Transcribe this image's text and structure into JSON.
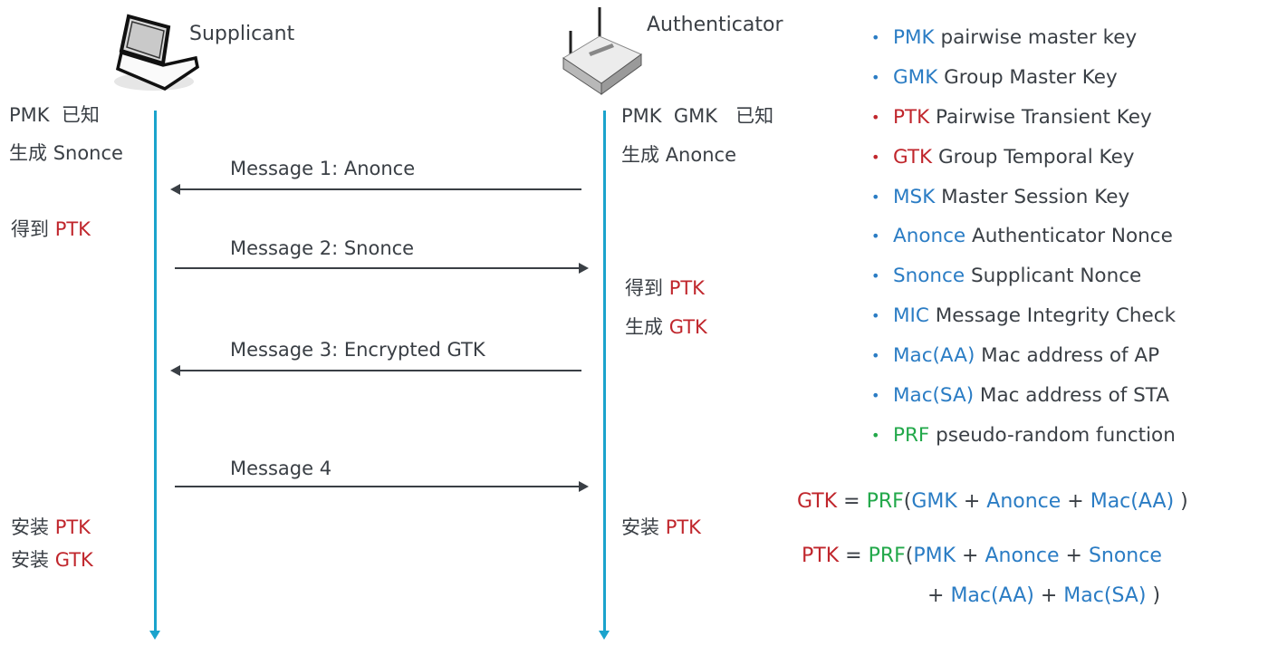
{
  "colors": {
    "text": "#3a3f45",
    "blue": "#2a7cc4",
    "red": "#c0262c",
    "green": "#22a84a",
    "lifeline": "#1aa3cc"
  },
  "supplicant": {
    "title": "Supplicant",
    "icon": "laptop-icon",
    "notes": [
      [
        {
          "t": "PMK  ",
          "c": "text"
        },
        {
          "t": "已知",
          "c": "text"
        }
      ],
      [
        {
          "t": "生成 ",
          "c": "text"
        },
        {
          "t": "Snonce",
          "c": "text"
        }
      ],
      [
        {
          "t": "得到 ",
          "c": "text"
        },
        {
          "t": "PTK",
          "c": "red"
        }
      ],
      [
        {
          "t": "安装 ",
          "c": "text"
        },
        {
          "t": "PTK",
          "c": "red"
        }
      ],
      [
        {
          "t": "安装 ",
          "c": "text"
        },
        {
          "t": "GTK",
          "c": "red"
        }
      ]
    ]
  },
  "authenticator": {
    "title": "Authenticator",
    "icon": "router-icon",
    "notes": [
      [
        {
          "t": "PMK  GMK   ",
          "c": "text"
        },
        {
          "t": "已知",
          "c": "text"
        }
      ],
      [
        {
          "t": "生成 ",
          "c": "text"
        },
        {
          "t": "Anonce",
          "c": "text"
        }
      ],
      [
        {
          "t": "得到 ",
          "c": "text"
        },
        {
          "t": "PTK",
          "c": "red"
        }
      ],
      [
        {
          "t": "生成 ",
          "c": "text"
        },
        {
          "t": "GTK",
          "c": "red"
        }
      ],
      [
        {
          "t": "安装 ",
          "c": "text"
        },
        {
          "t": "PTK",
          "c": "red"
        }
      ]
    ]
  },
  "messages": [
    {
      "label": "Message 1:  Anonce",
      "direction": "left"
    },
    {
      "label": "Message 2:  Snonce",
      "direction": "right"
    },
    {
      "label": "Message 3:  Encrypted GTK",
      "direction": "left"
    },
    {
      "label": "Message 4",
      "direction": "right"
    }
  ],
  "legend": [
    {
      "term": "PMK",
      "desc": " pairwise master key",
      "c": "blue"
    },
    {
      "term": "GMK",
      "desc": " Group Master Key",
      "c": "blue"
    },
    {
      "term": "PTK",
      "desc": " Pairwise Transient Key",
      "c": "red"
    },
    {
      "term": "GTK",
      "desc": " Group Temporal Key",
      "c": "red"
    },
    {
      "term": "MSK",
      "desc": " Master Session Key",
      "c": "blue"
    },
    {
      "term": "Anonce",
      "desc": " Authenticator Nonce",
      "c": "blue"
    },
    {
      "term": "Snonce",
      "desc": " Supplicant Nonce",
      "c": "blue"
    },
    {
      "term": "MIC",
      "desc": " Message Integrity Check",
      "c": "blue"
    },
    {
      "term": "Mac(AA)",
      "desc": " Mac address of AP",
      "c": "blue"
    },
    {
      "term": "Mac(SA)",
      "desc": " Mac address of STA",
      "c": "blue"
    },
    {
      "term": "PRF",
      "desc": " pseudo-random function",
      "c": "green"
    }
  ],
  "bullet": "•",
  "formulas": [
    [
      {
        "t": "GTK",
        "c": "red"
      },
      {
        "t": " = ",
        "c": "text"
      },
      {
        "t": "PRF",
        "c": "green"
      },
      {
        "t": "(",
        "c": "text"
      },
      {
        "t": "GMK",
        "c": "blue"
      },
      {
        "t": " + ",
        "c": "text"
      },
      {
        "t": "Anonce",
        "c": "blue"
      },
      {
        "t": " + ",
        "c": "text"
      },
      {
        "t": "Mac(AA)",
        "c": "blue"
      },
      {
        "t": " )",
        "c": "text"
      }
    ],
    [
      {
        "t": "PTK",
        "c": "red"
      },
      {
        "t": " = ",
        "c": "text"
      },
      {
        "t": "PRF",
        "c": "green"
      },
      {
        "t": "(",
        "c": "text"
      },
      {
        "t": "PMK",
        "c": "blue"
      },
      {
        "t": " + ",
        "c": "text"
      },
      {
        "t": "Anonce",
        "c": "blue"
      },
      {
        "t": " + ",
        "c": "text"
      },
      {
        "t": "Snonce",
        "c": "blue"
      }
    ],
    [
      {
        "t": "+ ",
        "c": "text"
      },
      {
        "t": "Mac(AA)",
        "c": "blue"
      },
      {
        "t": " + ",
        "c": "text"
      },
      {
        "t": "Mac(SA)",
        "c": "blue"
      },
      {
        "t": " )",
        "c": "text"
      }
    ]
  ]
}
